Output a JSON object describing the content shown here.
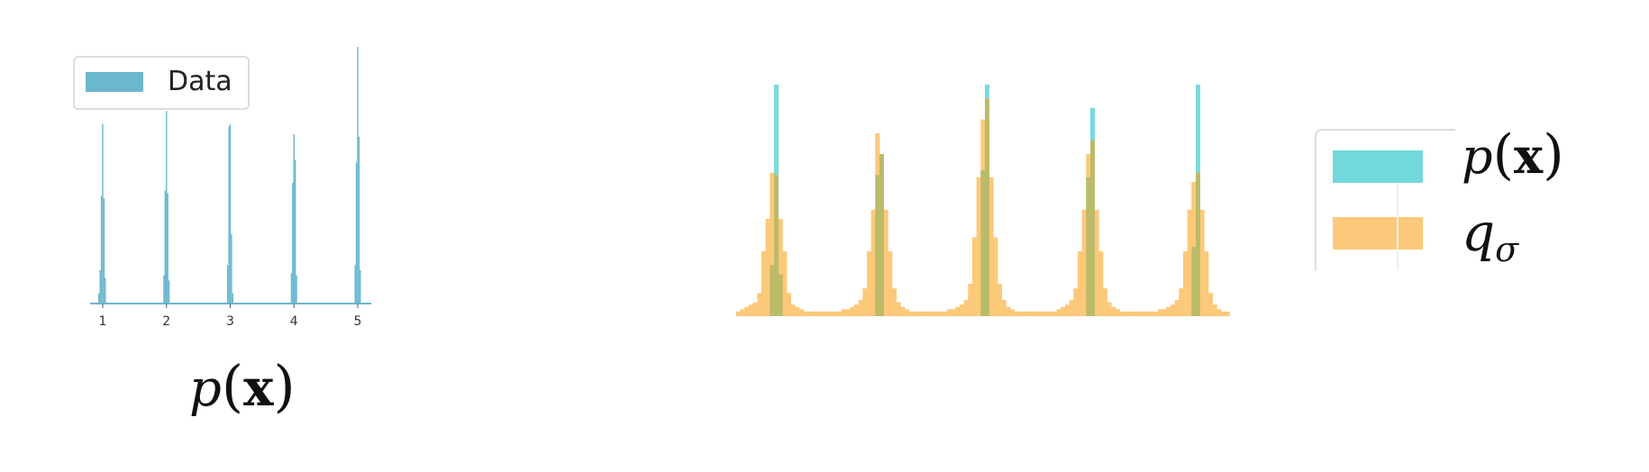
{
  "colors": {
    "data_blue": "#6bb7cd",
    "p_cyan": "#71d8db",
    "q_orange": "#fcc97a",
    "overlap": "#bbbb69",
    "axis": "#555555",
    "legend_border": "#dddddd"
  },
  "chart_data": [
    {
      "type": "bar",
      "title": "",
      "caption": "p(x)",
      "xlabel": "",
      "ylabel": "",
      "xticks": [
        "1",
        "2",
        "3",
        "4",
        "5"
      ],
      "xlim": [
        0.8,
        5.2
      ],
      "ylim": [
        0,
        1.0
      ],
      "legend": {
        "entries": [
          "Data"
        ],
        "placement": "top-left"
      },
      "series": [
        {
          "name": "Data",
          "color": "#6bb7cd",
          "bin_width": 0.02,
          "bins": [
            {
              "x": 0.94,
              "y": 0.04
            },
            {
              "x": 0.96,
              "y": 0.13
            },
            {
              "x": 0.98,
              "y": 0.42
            },
            {
              "x": 1.0,
              "y": 0.7
            },
            {
              "x": 1.02,
              "y": 0.41
            },
            {
              "x": 1.04,
              "y": 0.1
            },
            {
              "x": 1.96,
              "y": 0.11
            },
            {
              "x": 1.98,
              "y": 0.44
            },
            {
              "x": 2.0,
              "y": 0.75
            },
            {
              "x": 2.02,
              "y": 0.43
            },
            {
              "x": 2.04,
              "y": 0.09
            },
            {
              "x": 2.96,
              "y": 0.15
            },
            {
              "x": 2.98,
              "y": 0.69
            },
            {
              "x": 3.0,
              "y": 0.7
            },
            {
              "x": 3.02,
              "y": 0.27
            },
            {
              "x": 3.04,
              "y": 0.04
            },
            {
              "x": 3.96,
              "y": 0.12
            },
            {
              "x": 3.98,
              "y": 0.47
            },
            {
              "x": 4.0,
              "y": 0.66
            },
            {
              "x": 4.02,
              "y": 0.56
            },
            {
              "x": 4.04,
              "y": 0.11
            },
            {
              "x": 4.96,
              "y": 0.15
            },
            {
              "x": 4.98,
              "y": 0.55
            },
            {
              "x": 5.0,
              "y": 1.0
            },
            {
              "x": 5.02,
              "y": 0.65
            },
            {
              "x": 5.04,
              "y": 0.13
            }
          ]
        }
      ]
    },
    {
      "type": "bar",
      "title": "",
      "xlabel": "",
      "ylabel": "",
      "xlim": [
        0.6,
        5.4
      ],
      "ylim": [
        0,
        1.0
      ],
      "legend": {
        "entries": [
          "p(x)",
          "q_σ"
        ],
        "placement": "right"
      },
      "series": [
        {
          "name": "p(x)",
          "color": "#71d8db",
          "bin_width": 0.04,
          "bins": [
            {
              "x": 0.98,
              "y": 0.22
            },
            {
              "x": 1.02,
              "y": 1.0
            },
            {
              "x": 1.06,
              "y": 0.18
            },
            {
              "x": 1.98,
              "y": 0.61
            },
            {
              "x": 2.02,
              "y": 0.7
            },
            {
              "x": 2.98,
              "y": 0.63
            },
            {
              "x": 3.02,
              "y": 1.0
            },
            {
              "x": 3.98,
              "y": 0.6
            },
            {
              "x": 4.02,
              "y": 0.9
            },
            {
              "x": 4.98,
              "y": 0.3
            },
            {
              "x": 5.02,
              "y": 1.0
            }
          ]
        },
        {
          "name": "q_σ",
          "color": "#fcc97a",
          "bin_width": 0.04,
          "bins": [
            {
              "x": 0.66,
              "y": 0.02
            },
            {
              "x": 0.7,
              "y": 0.03
            },
            {
              "x": 0.74,
              "y": 0.04
            },
            {
              "x": 0.78,
              "y": 0.05
            },
            {
              "x": 0.82,
              "y": 0.06
            },
            {
              "x": 0.86,
              "y": 0.1
            },
            {
              "x": 0.9,
              "y": 0.28
            },
            {
              "x": 0.94,
              "y": 0.42
            },
            {
              "x": 0.98,
              "y": 0.62
            },
            {
              "x": 1.02,
              "y": 0.61
            },
            {
              "x": 1.06,
              "y": 0.42
            },
            {
              "x": 1.1,
              "y": 0.28
            },
            {
              "x": 1.14,
              "y": 0.1
            },
            {
              "x": 1.18,
              "y": 0.05
            },
            {
              "x": 1.22,
              "y": 0.04
            },
            {
              "x": 1.26,
              "y": 0.03
            },
            {
              "x": 1.3,
              "y": 0.02
            },
            {
              "x": 1.34,
              "y": 0.02
            },
            {
              "x": 1.38,
              "y": 0.02
            },
            {
              "x": 1.42,
              "y": 0.02
            },
            {
              "x": 1.46,
              "y": 0.02
            },
            {
              "x": 1.5,
              "y": 0.02
            },
            {
              "x": 1.54,
              "y": 0.02
            },
            {
              "x": 1.58,
              "y": 0.02
            },
            {
              "x": 1.62,
              "y": 0.02
            },
            {
              "x": 1.66,
              "y": 0.03
            },
            {
              "x": 1.7,
              "y": 0.03
            },
            {
              "x": 1.74,
              "y": 0.04
            },
            {
              "x": 1.78,
              "y": 0.05
            },
            {
              "x": 1.82,
              "y": 0.07
            },
            {
              "x": 1.86,
              "y": 0.12
            },
            {
              "x": 1.9,
              "y": 0.28
            },
            {
              "x": 1.94,
              "y": 0.46
            },
            {
              "x": 1.98,
              "y": 0.79
            },
            {
              "x": 2.02,
              "y": 0.7
            },
            {
              "x": 2.06,
              "y": 0.46
            },
            {
              "x": 2.1,
              "y": 0.28
            },
            {
              "x": 2.14,
              "y": 0.12
            },
            {
              "x": 2.18,
              "y": 0.06
            },
            {
              "x": 2.22,
              "y": 0.04
            },
            {
              "x": 2.26,
              "y": 0.03
            },
            {
              "x": 2.3,
              "y": 0.02
            },
            {
              "x": 2.34,
              "y": 0.02
            },
            {
              "x": 2.38,
              "y": 0.02
            },
            {
              "x": 2.42,
              "y": 0.02
            },
            {
              "x": 2.46,
              "y": 0.02
            },
            {
              "x": 2.5,
              "y": 0.02
            },
            {
              "x": 2.54,
              "y": 0.02
            },
            {
              "x": 2.58,
              "y": 0.02
            },
            {
              "x": 2.62,
              "y": 0.02
            },
            {
              "x": 2.66,
              "y": 0.03
            },
            {
              "x": 2.7,
              "y": 0.03
            },
            {
              "x": 2.74,
              "y": 0.04
            },
            {
              "x": 2.78,
              "y": 0.05
            },
            {
              "x": 2.82,
              "y": 0.07
            },
            {
              "x": 2.86,
              "y": 0.14
            },
            {
              "x": 2.9,
              "y": 0.34
            },
            {
              "x": 2.94,
              "y": 0.6
            },
            {
              "x": 2.98,
              "y": 0.85
            },
            {
              "x": 3.02,
              "y": 0.94
            },
            {
              "x": 3.06,
              "y": 0.6
            },
            {
              "x": 3.1,
              "y": 0.34
            },
            {
              "x": 3.14,
              "y": 0.14
            },
            {
              "x": 3.18,
              "y": 0.07
            },
            {
              "x": 3.22,
              "y": 0.04
            },
            {
              "x": 3.26,
              "y": 0.03
            },
            {
              "x": 3.3,
              "y": 0.02
            },
            {
              "x": 3.34,
              "y": 0.02
            },
            {
              "x": 3.38,
              "y": 0.02
            },
            {
              "x": 3.42,
              "y": 0.02
            },
            {
              "x": 3.46,
              "y": 0.02
            },
            {
              "x": 3.5,
              "y": 0.02
            },
            {
              "x": 3.54,
              "y": 0.02
            },
            {
              "x": 3.58,
              "y": 0.02
            },
            {
              "x": 3.62,
              "y": 0.02
            },
            {
              "x": 3.66,
              "y": 0.02
            },
            {
              "x": 3.7,
              "y": 0.03
            },
            {
              "x": 3.74,
              "y": 0.04
            },
            {
              "x": 3.78,
              "y": 0.05
            },
            {
              "x": 3.82,
              "y": 0.07
            },
            {
              "x": 3.86,
              "y": 0.12
            },
            {
              "x": 3.9,
              "y": 0.28
            },
            {
              "x": 3.94,
              "y": 0.46
            },
            {
              "x": 3.98,
              "y": 0.7
            },
            {
              "x": 4.02,
              "y": 0.76
            },
            {
              "x": 4.06,
              "y": 0.46
            },
            {
              "x": 4.1,
              "y": 0.28
            },
            {
              "x": 4.14,
              "y": 0.12
            },
            {
              "x": 4.18,
              "y": 0.06
            },
            {
              "x": 4.22,
              "y": 0.04
            },
            {
              "x": 4.26,
              "y": 0.03
            },
            {
              "x": 4.3,
              "y": 0.02
            },
            {
              "x": 4.34,
              "y": 0.02
            },
            {
              "x": 4.38,
              "y": 0.02
            },
            {
              "x": 4.42,
              "y": 0.02
            },
            {
              "x": 4.46,
              "y": 0.02
            },
            {
              "x": 4.5,
              "y": 0.02
            },
            {
              "x": 4.54,
              "y": 0.02
            },
            {
              "x": 4.58,
              "y": 0.02
            },
            {
              "x": 4.62,
              "y": 0.02
            },
            {
              "x": 4.66,
              "y": 0.03
            },
            {
              "x": 4.7,
              "y": 0.03
            },
            {
              "x": 4.74,
              "y": 0.04
            },
            {
              "x": 4.78,
              "y": 0.05
            },
            {
              "x": 4.82,
              "y": 0.07
            },
            {
              "x": 4.86,
              "y": 0.12
            },
            {
              "x": 4.9,
              "y": 0.28
            },
            {
              "x": 4.94,
              "y": 0.46
            },
            {
              "x": 4.98,
              "y": 0.58
            },
            {
              "x": 5.02,
              "y": 0.62
            },
            {
              "x": 5.06,
              "y": 0.46
            },
            {
              "x": 5.1,
              "y": 0.28
            },
            {
              "x": 5.14,
              "y": 0.1
            },
            {
              "x": 5.18,
              "y": 0.05
            },
            {
              "x": 5.22,
              "y": 0.03
            },
            {
              "x": 5.26,
              "y": 0.02
            },
            {
              "x": 5.3,
              "y": 0.02
            }
          ]
        }
      ]
    }
  ]
}
